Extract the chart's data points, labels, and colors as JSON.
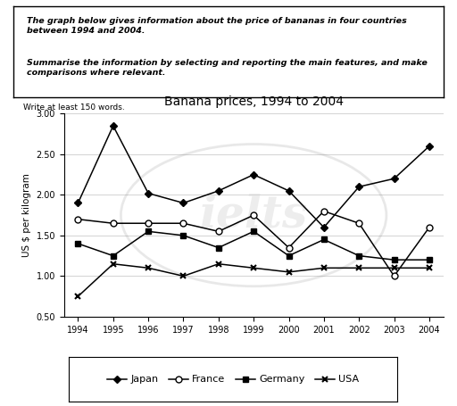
{
  "title": "Banana prices, 1994 to 2004",
  "ylabel": "US $ per kilogram",
  "years": [
    1994,
    1995,
    1996,
    1997,
    1998,
    1999,
    2000,
    2001,
    2002,
    2003,
    2004
  ],
  "japan": [
    1.9,
    2.85,
    2.02,
    1.9,
    2.05,
    2.25,
    2.05,
    1.6,
    2.1,
    2.2,
    2.6
  ],
  "france": [
    1.7,
    1.65,
    1.65,
    1.65,
    1.55,
    1.75,
    1.35,
    1.8,
    1.65,
    1.0,
    1.6
  ],
  "germany": [
    1.4,
    1.25,
    1.55,
    1.5,
    1.35,
    1.55,
    1.25,
    1.45,
    1.25,
    1.2,
    1.2
  ],
  "usa": [
    0.75,
    1.15,
    1.1,
    1.0,
    1.15,
    1.1,
    1.05,
    1.1,
    1.1,
    1.1,
    1.1
  ],
  "ylim": [
    0.5,
    3.0
  ],
  "yticks": [
    0.5,
    1.0,
    1.5,
    2.0,
    2.5,
    3.0
  ],
  "box_text_line1": "The graph below gives information about the price of bananas in four countries\nbetween 1994 and 2004.",
  "box_text_line2": "Summarise the information by selecting and reporting the main features, and make\ncomparisons where relevant.",
  "write_text": "Write at least 150 words.",
  "bg_color": "#ffffff",
  "legend_entries": [
    "Japan",
    "France",
    "Germany",
    "USA"
  ]
}
